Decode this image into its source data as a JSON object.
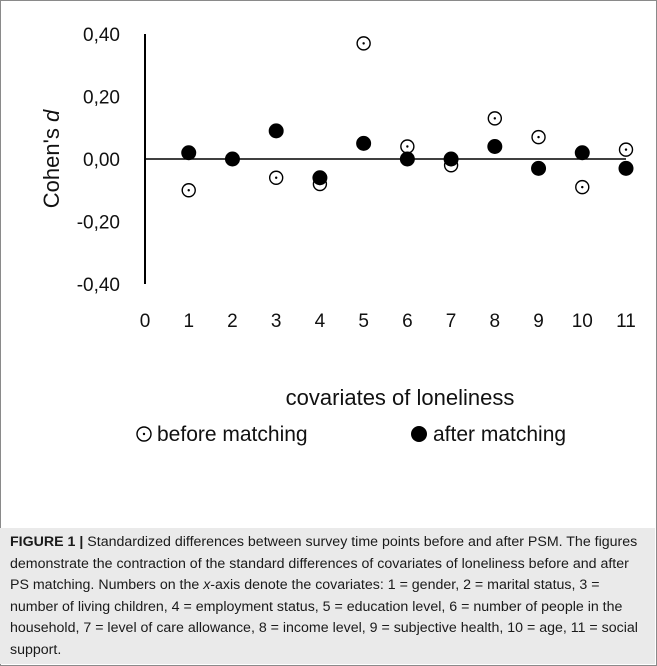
{
  "chart_data": {
    "type": "scatter",
    "ylabel_prefix": "Cohen's ",
    "ylabel_italic": "d",
    "xlabel": "covariates of loneliness",
    "y_ticks": [
      "0,40",
      "0,20",
      "0,00",
      "-0,20",
      "-0,40"
    ],
    "y_tick_values": [
      0.4,
      0.2,
      0.0,
      -0.2,
      -0.4
    ],
    "x_ticks": [
      "0",
      "1",
      "2",
      "3",
      "4",
      "5",
      "6",
      "7",
      "8",
      "9",
      "10",
      "11"
    ],
    "x_tick_values": [
      0,
      1,
      2,
      3,
      4,
      5,
      6,
      7,
      8,
      9,
      10,
      11
    ],
    "xlim": [
      0,
      11
    ],
    "ylim": [
      -0.4,
      0.4
    ],
    "legend_position": "bottom",
    "series": [
      {
        "name": "before matching",
        "marker": "open-circle",
        "x": [
          1,
          3,
          4,
          5,
          6,
          7,
          8,
          9,
          10,
          11
        ],
        "y": [
          -0.1,
          -0.06,
          -0.08,
          0.37,
          0.04,
          -0.02,
          0.13,
          0.07,
          -0.09,
          0.03
        ]
      },
      {
        "name": "after matching",
        "marker": "filled-circle",
        "x": [
          1,
          2,
          3,
          4,
          5,
          6,
          7,
          8,
          9,
          10,
          11
        ],
        "y": [
          0.02,
          0.0,
          0.09,
          -0.06,
          0.05,
          0.0,
          0.0,
          0.04,
          -0.03,
          0.02,
          -0.03
        ]
      }
    ]
  },
  "caption": {
    "label": "FIGURE 1 |",
    "text_1": " Standardized differences between survey time points before and after PSM. The figures demonstrate the contraction of the standard differences of covariates of loneliness before and after PS matching. Numbers on the ",
    "x_word": "x",
    "text_2": "-axis denote the covariates: 1 = gender, 2 = marital status, 3 = number of living children, 4 = employment status, 5 = education level, 6 = number of people in the household, 7 = level of care allowance, 8 = income level, 9 = subjective health, 10 = age, 11 = social support."
  }
}
